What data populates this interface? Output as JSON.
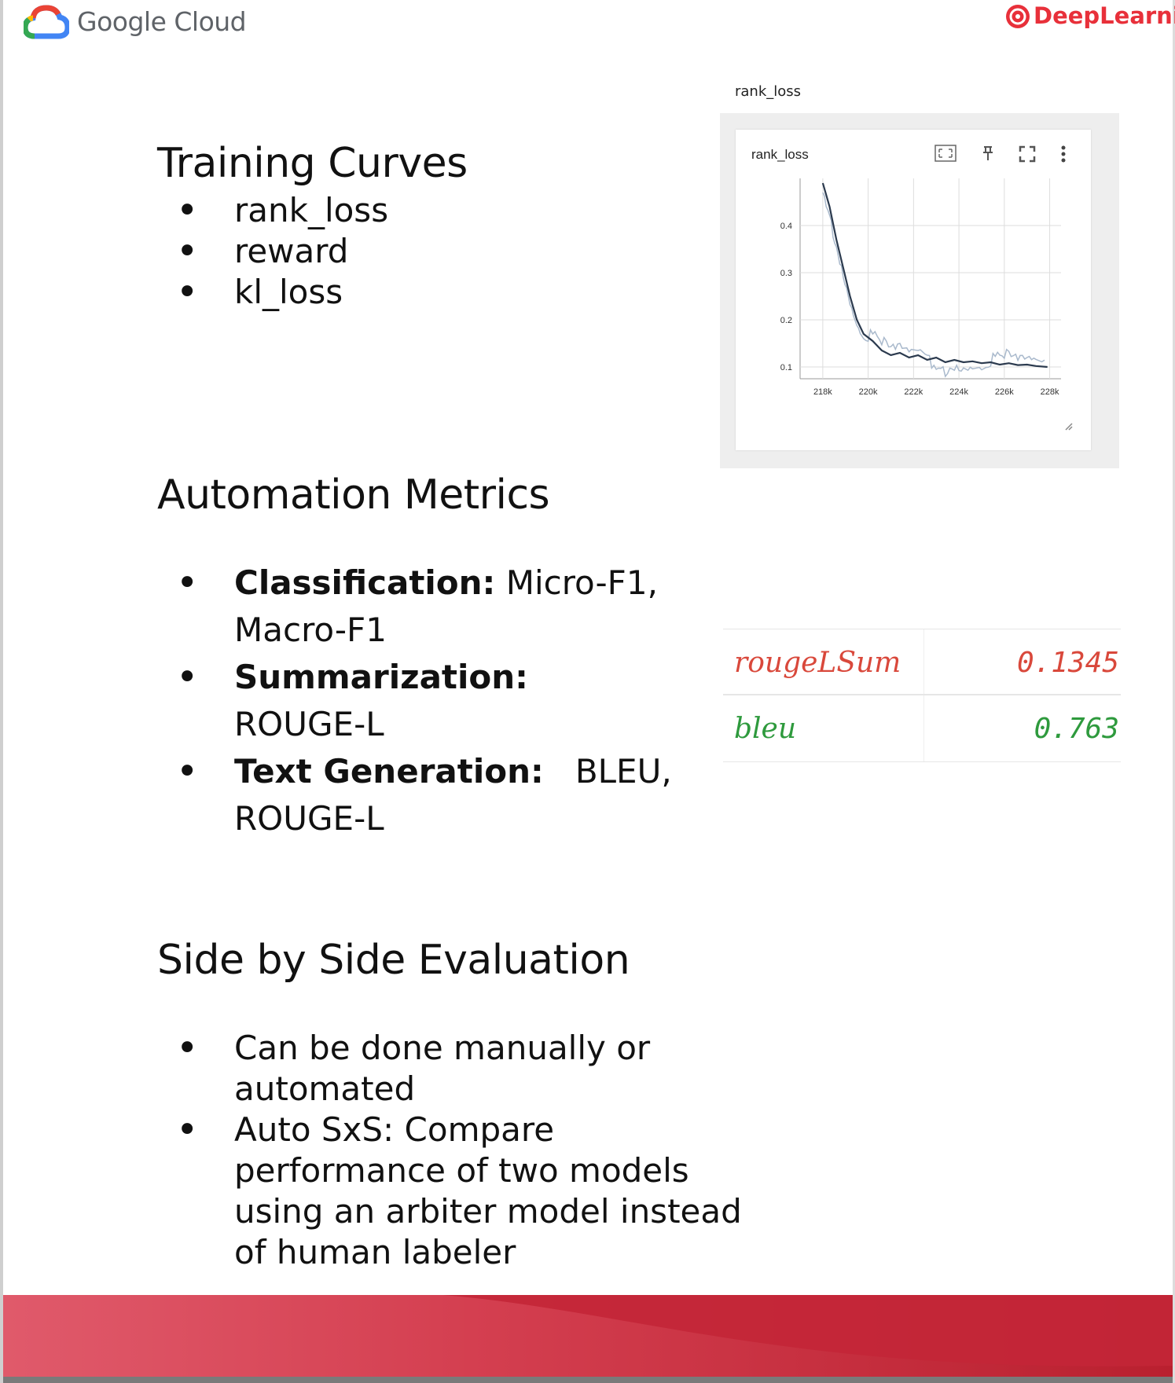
{
  "header": {
    "brand_left": "Google Cloud",
    "brand_right": "DeepLearning"
  },
  "sections": {
    "training": {
      "title": "Training Curves",
      "items": [
        "rank_loss",
        "reward",
        "kl_loss"
      ]
    },
    "automation": {
      "title": "Automation Metrics",
      "items": [
        {
          "label": "Classification:",
          "text": " Micro-F1,",
          "cont": "Macro-F1"
        },
        {
          "label": "Summarization:",
          "text": "",
          "cont": "ROUGE-L"
        },
        {
          "label": "Text Generation:",
          "text": "   BLEU,",
          "cont": "ROUGE-L"
        }
      ]
    },
    "sxs": {
      "title": "Side by Side Evaluation",
      "items": [
        {
          "line1": "Can be done manually or",
          "line2": "automated"
        },
        {
          "line1": "Auto SxS: Compare",
          "line2": "performance of two models",
          "line3": "using an arbiter model instead",
          "line4": "of human labeler"
        }
      ]
    }
  },
  "chart_outer_title": "rank_loss",
  "metrics": [
    {
      "name": "rougeLSum",
      "value": "0.1345"
    },
    {
      "name": "bleu",
      "value": "0.763"
    }
  ],
  "colors": {
    "line_dark": "#2b3a4e",
    "line_raw": "#a9b9cc",
    "metric_red": "#d9483b",
    "metric_green": "#2e9a3d",
    "footer_red": "#c32637"
  },
  "icons": [
    "google-cloud-logo",
    "deeplearning-logo",
    "fit-domain-icon",
    "pin-icon",
    "fullscreen-icon",
    "more-vert-icon",
    "resize-handle-icon"
  ],
  "chart_data": {
    "type": "line",
    "title": "rank_loss",
    "x_ticks": [
      "218k",
      "220k",
      "222k",
      "224k",
      "226k",
      "228k"
    ],
    "y_ticks": [
      "0.1",
      "0.2",
      "0.3",
      "0.4"
    ],
    "xlim": [
      217000,
      228500
    ],
    "ylim": [
      0.075,
      0.5
    ],
    "grid": true,
    "series": [
      {
        "x": [
          218000,
          218300,
          218600,
          218900,
          219200,
          219500,
          219800,
          220200,
          220600,
          221000,
          221400,
          221800,
          222200,
          222600,
          223000,
          223400,
          223800,
          224200,
          224600,
          225000,
          225400,
          225800,
          226200,
          226600,
          227000,
          227400,
          227900
        ],
        "y": [
          0.49,
          0.44,
          0.37,
          0.31,
          0.25,
          0.2,
          0.17,
          0.155,
          0.135,
          0.125,
          0.13,
          0.12,
          0.125,
          0.115,
          0.12,
          0.11,
          0.115,
          0.11,
          0.112,
          0.108,
          0.11,
          0.105,
          0.108,
          0.104,
          0.105,
          0.102,
          0.1
        ]
      }
    ]
  }
}
